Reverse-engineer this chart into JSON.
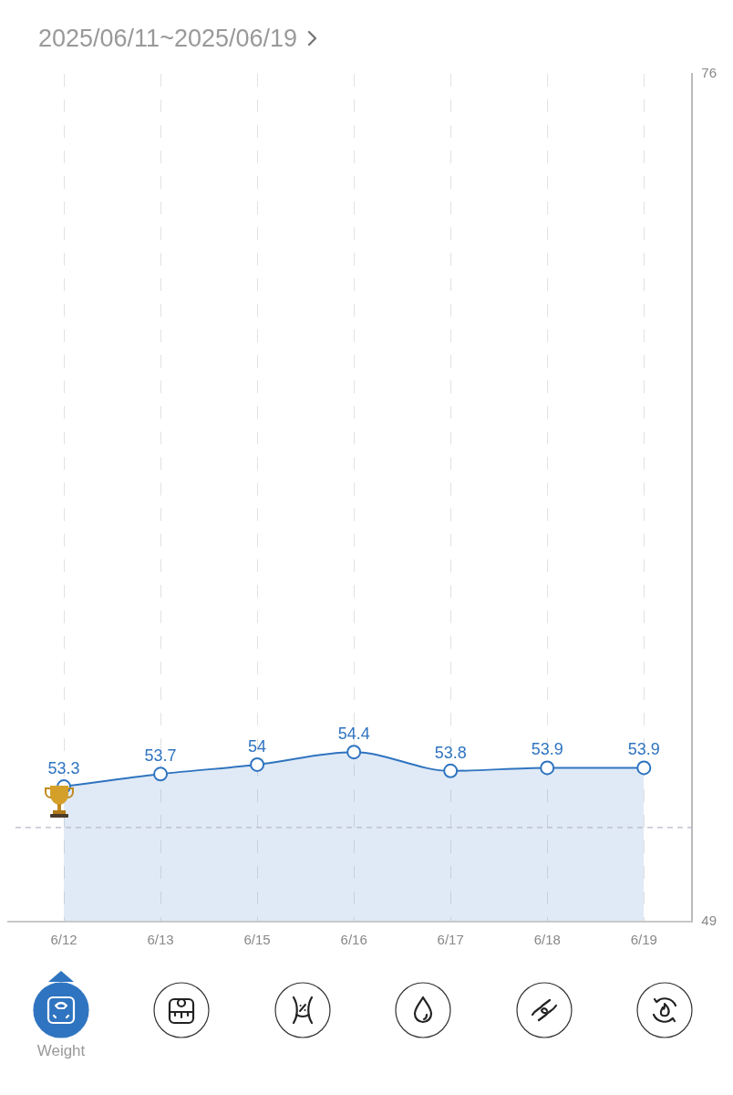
{
  "chart_data": {
    "type": "area",
    "title": "2025/06/11~2025/06/19",
    "categories": [
      "6/12",
      "6/13",
      "6/15",
      "6/16",
      "6/17",
      "6/18",
      "6/19"
    ],
    "series": [
      {
        "color": "#2f74c0",
        "values": [
          53.3,
          53.7,
          54,
          54.4,
          53.8,
          53.9,
          53.9
        ]
      }
    ],
    "ylim": [
      49,
      76
    ],
    "yticks": [
      49,
      76
    ],
    "grid": "x",
    "marker": "circle",
    "data_labels": true,
    "ref_lines": [
      {
        "axis": "y",
        "value": 52,
        "color": "#b8b8c8",
        "line_style": "dashed"
      }
    ],
    "annotations": [
      "Weight"
    ]
  }
}
